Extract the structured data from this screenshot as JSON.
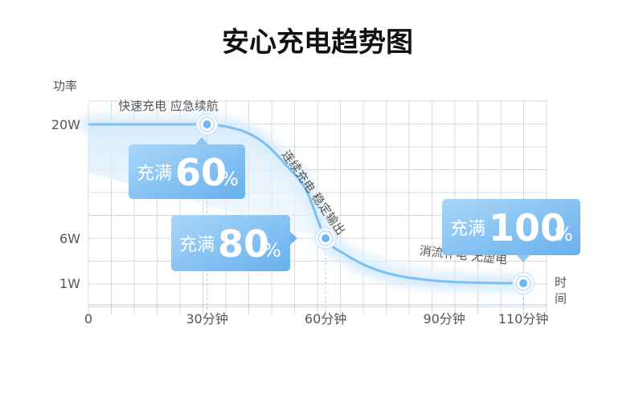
{
  "title": "安心充电趋势图",
  "chart_data": {
    "type": "line",
    "xlabel": "时间",
    "ylabel": "功率",
    "x_ticks": [
      "0",
      "30分钟",
      "60分钟",
      "90分钟",
      "110分钟"
    ],
    "y_ticks": [
      "20W",
      "6W",
      "1W"
    ],
    "series": [
      {
        "x": [
          0,
          5,
          10,
          15,
          20,
          25,
          30,
          35,
          40,
          45,
          50,
          55,
          60,
          65,
          70,
          75,
          80,
          85,
          90,
          95,
          100,
          105,
          110
        ],
        "y": [
          20,
          20,
          20,
          20,
          20,
          20,
          20,
          19.7,
          19,
          17.5,
          15,
          12,
          6,
          4.2,
          3,
          2.2,
          1.7,
          1.4,
          1.2,
          1.1,
          1.05,
          1.0,
          1.0
        ]
      }
    ],
    "annotations": [
      {
        "text": "快速充电 应急续航",
        "x": 30,
        "y": 20
      },
      {
        "text": "连续充电 稳定输出",
        "x": 60,
        "y": 6
      },
      {
        "text": "消流补电 无虚电",
        "x": 110,
        "y": 1
      }
    ],
    "badges": [
      {
        "label": "充满",
        "value": "60",
        "unit": "%"
      },
      {
        "label": "充满",
        "value": "80",
        "unit": "%"
      },
      {
        "label": "充满",
        "value": "100",
        "unit": "%"
      }
    ],
    "grid": true
  },
  "colors": {
    "curve": "#7cc0f2",
    "grid": "#d6dbe2",
    "badge_left": "#9fd0f7",
    "badge_right": "#6cb2ee"
  }
}
